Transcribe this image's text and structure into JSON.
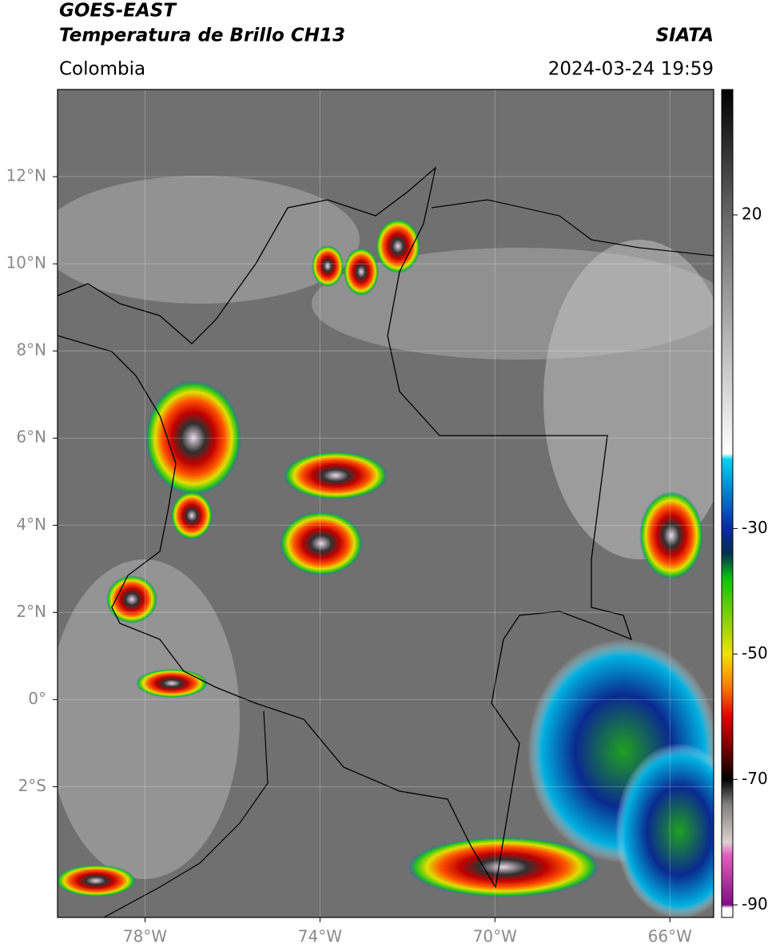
{
  "header": {
    "title": "GOES-EAST",
    "subtitle": "Temperatura de Brillo CH13",
    "source": "SIATA",
    "region": "Colombia",
    "datetime": "2024-03-24 19:59"
  },
  "map": {
    "lonlim": [
      -80,
      -65
    ],
    "latlim": [
      -5,
      14
    ],
    "lon_ticks": [
      {
        "value": -78,
        "label": "78°W"
      },
      {
        "value": -74,
        "label": "74°W"
      },
      {
        "value": -70,
        "label": "70°W"
      },
      {
        "value": -66,
        "label": "66°W"
      }
    ],
    "lat_ticks": [
      {
        "value": 12,
        "label": "12°N"
      },
      {
        "value": 10,
        "label": "10°N"
      },
      {
        "value": 8,
        "label": "8°N"
      },
      {
        "value": 6,
        "label": "6°N"
      },
      {
        "value": 4,
        "label": "4°N"
      },
      {
        "value": 2,
        "label": "2°N"
      },
      {
        "value": 0,
        "label": "0°"
      },
      {
        "value": -2,
        "label": "2°S"
      }
    ],
    "grid": true
  },
  "colorbar": {
    "lim": [
      -92,
      40
    ],
    "ticks": [
      20,
      -30,
      -50,
      -70,
      -90
    ],
    "colormap": [
      {
        "value": 40,
        "color": "#000000"
      },
      {
        "value": 20,
        "color": "#666666"
      },
      {
        "value": -18,
        "color": "#ffffff"
      },
      {
        "value": -19,
        "color": "#00d0f0"
      },
      {
        "value": -30,
        "color": "#0a2aa0"
      },
      {
        "value": -34,
        "color": "#003050"
      },
      {
        "value": -38,
        "color": "#10c010"
      },
      {
        "value": -50,
        "color": "#f0e000"
      },
      {
        "value": -55,
        "color": "#ff8000"
      },
      {
        "value": -60,
        "color": "#e00000"
      },
      {
        "value": -66,
        "color": "#600000"
      },
      {
        "value": -70,
        "color": "#000000"
      },
      {
        "value": -74,
        "color": "#808080"
      },
      {
        "value": -80,
        "color": "#e0d0d0"
      },
      {
        "value": -82,
        "color": "#e060c0"
      },
      {
        "value": -90,
        "color": "#801080"
      },
      {
        "value": -90.5,
        "color": "#ffffff"
      },
      {
        "value": -92,
        "color": "#ffffff"
      }
    ]
  }
}
